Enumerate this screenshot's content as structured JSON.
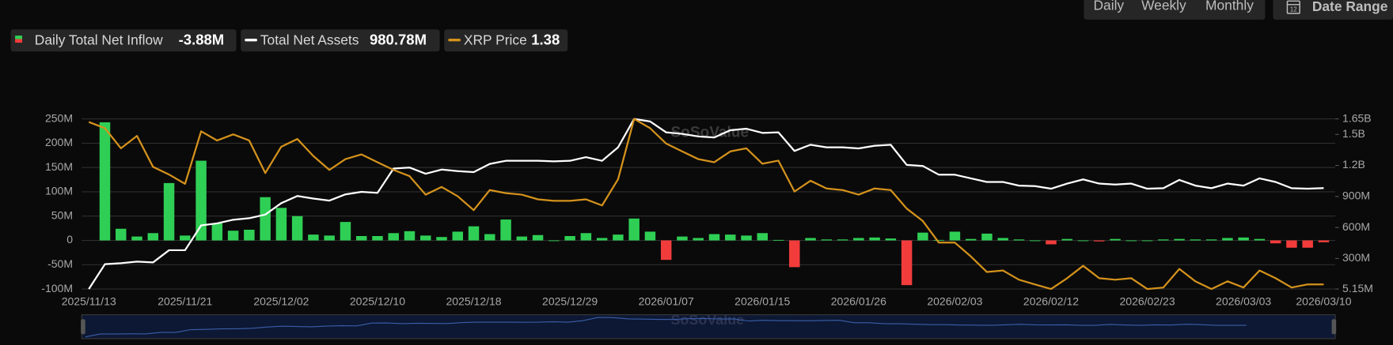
{
  "controls": {
    "intervals": [
      "Daily",
      "Weekly",
      "Monthly"
    ],
    "active_interval": 0,
    "date_range": "Date Range"
  },
  "chart_data": {
    "type": "combo",
    "watermark": "SoSoValue",
    "categories": [
      "2025/11/13",
      null,
      null,
      null,
      null,
      null,
      "2025/11/21",
      null,
      null,
      null,
      null,
      null,
      "2025/12/02",
      null,
      null,
      null,
      null,
      null,
      "2025/12/10",
      null,
      null,
      null,
      null,
      null,
      "2025/12/18",
      null,
      null,
      null,
      null,
      null,
      "2025/12/29",
      null,
      null,
      null,
      null,
      null,
      "2026/01/07",
      null,
      null,
      null,
      null,
      null,
      "2026/01/15",
      null,
      null,
      null,
      null,
      null,
      "2026/01/26",
      null,
      null,
      null,
      null,
      null,
      "2026/02/03",
      null,
      null,
      null,
      null,
      null,
      "2026/02/12",
      null,
      null,
      null,
      null,
      null,
      "2026/02/23",
      null,
      null,
      null,
      null,
      null,
      "2026/03/03",
      null,
      null,
      null,
      null,
      "2026/03/10"
    ],
    "ylim": [
      -100,
      250
    ],
    "yticks": [
      {
        "value": -100,
        "label": "-100M"
      },
      {
        "value": -50,
        "label": "-50M"
      },
      0,
      {
        "value": 50,
        "label": "50M"
      },
      {
        "value": 100,
        "label": "100M"
      },
      {
        "value": 150,
        "label": "150M"
      },
      {
        "value": 200,
        "label": "200M"
      },
      {
        "value": 250,
        "label": "250M"
      }
    ],
    "y2lim": [
      5.15,
      1650
    ],
    "y2ticks": [
      {
        "value": 5.15,
        "label": "5.15M"
      },
      {
        "value": 300,
        "label": "300M"
      },
      {
        "value": 600,
        "label": "600M"
      },
      {
        "value": 900,
        "label": "900M"
      },
      {
        "value": 1200,
        "label": "1.2B"
      },
      {
        "value": 1500,
        "label": "1.5B"
      },
      {
        "value": 1650,
        "label": "1.65B"
      }
    ],
    "y3lim": [
      1.35,
      2.45
    ],
    "grid": true,
    "series": [
      {
        "name": "Daily Total Net Inflow",
        "type": "bar",
        "color": "#2fcf55",
        "negative_color": "#f23c3c",
        "legend_value": "-3.88M",
        "values": [
          null,
          243,
          24,
          8,
          15,
          118,
          10,
          164,
          35,
          20,
          22,
          89,
          67,
          50,
          12,
          10,
          38,
          9,
          9,
          15,
          19,
          10,
          7,
          18,
          29,
          13,
          43,
          8,
          11,
          0,
          9,
          15,
          5,
          12,
          45,
          18,
          -40,
          8,
          5,
          13,
          12,
          10,
          15,
          1,
          -55,
          5,
          2,
          2,
          5,
          6,
          4,
          -92,
          16,
          1,
          18,
          3,
          14,
          5,
          2,
          0,
          -8,
          3,
          0,
          -2,
          3,
          0,
          0,
          2,
          3,
          2,
          2,
          5,
          6,
          3,
          -6,
          -15,
          -15,
          -3.88
        ]
      },
      {
        "name": "Total Net Assets",
        "type": "line",
        "axis": "y2",
        "color": "#ffffff",
        "legend_value": "980.78M",
        "values": [
          5.15,
          245,
          255,
          270,
          262,
          380,
          380,
          620,
          640,
          675,
          690,
          725,
          835,
          905,
          880,
          860,
          920,
          945,
          935,
          1170,
          1180,
          1120,
          1160,
          1145,
          1135,
          1215,
          1245,
          1245,
          1245,
          1240,
          1245,
          1280,
          1245,
          1375,
          1650,
          1625,
          1520,
          1505,
          1480,
          1470,
          1540,
          1555,
          1515,
          1520,
          1340,
          1400,
          1375,
          1375,
          1365,
          1390,
          1400,
          1205,
          1195,
          1110,
          1110,
          1075,
          1040,
          1040,
          1005,
          1000,
          975,
          1025,
          1065,
          1025,
          1015,
          1025,
          975,
          980,
          1060,
          1005,
          980,
          1025,
          1005,
          1075,
          1040,
          980,
          975,
          980.78
        ]
      },
      {
        "name": "XRP Price",
        "type": "line",
        "axis": "y3",
        "color": "#d4921c",
        "legend_value": "1.38",
        "values": [
          2.43,
          2.39,
          2.26,
          2.34,
          2.14,
          2.09,
          2.03,
          2.37,
          2.31,
          2.35,
          2.31,
          2.1,
          2.27,
          2.32,
          2.21,
          2.12,
          2.19,
          2.22,
          2.17,
          2.12,
          2.08,
          1.96,
          2.01,
          1.95,
          1.86,
          1.99,
          1.97,
          1.96,
          1.93,
          1.92,
          1.92,
          1.93,
          1.89,
          2.06,
          2.45,
          2.39,
          2.29,
          2.24,
          2.19,
          2.17,
          2.24,
          2.26,
          2.16,
          2.18,
          1.98,
          2.05,
          2.0,
          1.99,
          1.96,
          2.0,
          1.99,
          1.87,
          1.79,
          1.65,
          1.65,
          1.56,
          1.46,
          1.47,
          1.41,
          1.38,
          1.35,
          1.42,
          1.5,
          1.42,
          1.41,
          1.42,
          1.35,
          1.36,
          1.48,
          1.4,
          1.35,
          1.4,
          1.36,
          1.47,
          1.42,
          1.36,
          1.38,
          1.38
        ]
      }
    ]
  }
}
